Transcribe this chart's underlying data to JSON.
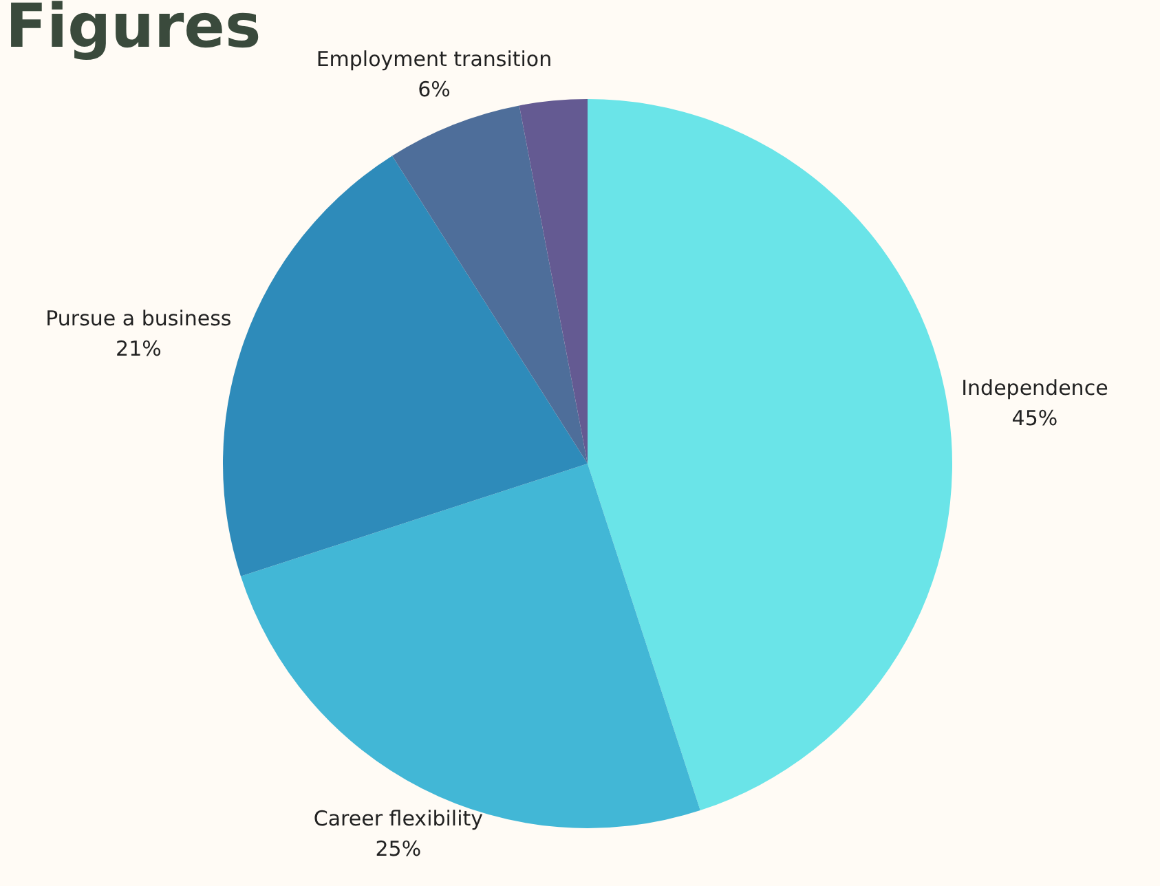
{
  "chart_data": {
    "type": "pie",
    "title": "Figures",
    "categories": [
      "Independence",
      "Career flexibility",
      "Pursue a business",
      "Employment transition",
      null
    ],
    "values": [
      45,
      25,
      21,
      6,
      3
    ],
    "value_labels": [
      "45%",
      "25%",
      "21%",
      "6%",
      null
    ],
    "colors": [
      "#6ae4e8",
      "#42b7d6",
      "#2e8bba",
      "#4e6e9a",
      "#645a92"
    ],
    "legend": false
  }
}
